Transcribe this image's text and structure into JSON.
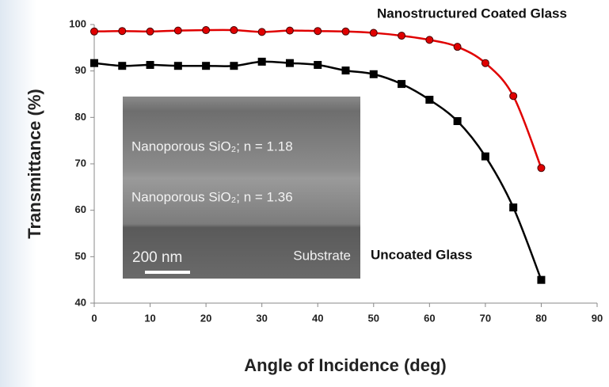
{
  "chart_data": {
    "type": "line",
    "x_label": "Angle of Incidence (deg)",
    "y_label": "Transmittance (%)",
    "x": [
      0,
      5,
      10,
      15,
      20,
      25,
      30,
      35,
      40,
      45,
      50,
      55,
      60,
      65,
      70,
      75,
      80
    ],
    "series": [
      {
        "name": "Nanostructured Coated Glass",
        "color": "#e00000",
        "marker": "circle",
        "values": [
          98.5,
          98.6,
          98.5,
          98.7,
          98.8,
          98.8,
          98.4,
          98.7,
          98.6,
          98.5,
          98.2,
          97.6,
          96.7,
          95.2,
          91.7,
          84.6,
          69.1
        ]
      },
      {
        "name": "Uncoated Glass",
        "color": "#000000",
        "marker": "square",
        "values": [
          91.7,
          91.1,
          91.3,
          91.1,
          91.1,
          91.1,
          92.0,
          91.7,
          91.3,
          90.1,
          89.3,
          87.2,
          83.8,
          79.2,
          71.6,
          60.6,
          45.0
        ]
      }
    ],
    "xlim": [
      0,
      90
    ],
    "xticks": [
      0,
      10,
      20,
      30,
      40,
      50,
      60,
      70,
      80,
      90
    ],
    "ylim": [
      40,
      100
    ],
    "yticks": [
      40,
      50,
      60,
      70,
      80,
      90,
      100
    ],
    "inset_labels": [
      "Nanoporous SiO₂; n = 1.18",
      "Nanoporous SiO₂; n = 1.36",
      "200 nm",
      "Substrate"
    ]
  }
}
